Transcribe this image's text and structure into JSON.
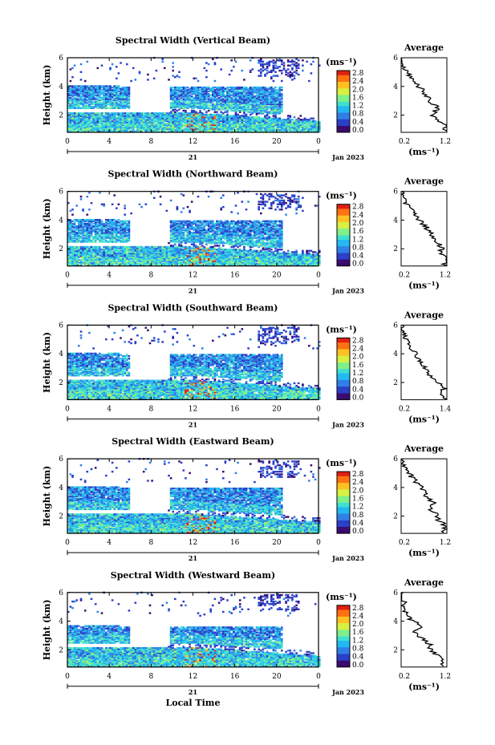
{
  "figure": {
    "x_axis_label": "Local Time",
    "date_label": "Jan 2023",
    "day_label": "21",
    "y_axis_label": "Height (km)",
    "unit_label": "(ms⁻¹)",
    "profile_title": "Average",
    "colorbar_ticks": [
      "0.0",
      "0.4",
      "0.8",
      "1.2",
      "1.6",
      "2.0",
      "2.4",
      "2.8"
    ],
    "colors": [
      "#3a0a6e",
      "#2a3fc8",
      "#2f7fe6",
      "#22b8f0",
      "#3fe0d0",
      "#7ff08a",
      "#d8f040",
      "#ffc020",
      "#ff7010",
      "#e02010"
    ]
  },
  "chart_data": [
    {
      "type": "heatmap",
      "title": "Spectral Width (Vertical Beam)",
      "xlabel": "",
      "ylabel": "Height (km)",
      "xlim": [
        0,
        24
      ],
      "ylim": [
        0.8,
        6
      ],
      "xticks": [
        "0",
        "4",
        "8",
        "12",
        "16",
        "20",
        "0"
      ],
      "yticks": [
        "2",
        "4",
        "6"
      ],
      "colorbar": {
        "label": "(ms⁻¹)",
        "range": [
          0,
          2.8
        ],
        "ticks": [
          "0.0",
          "0.4",
          "0.8",
          "1.2",
          "1.6",
          "2.0",
          "2.4",
          "2.8"
        ]
      },
      "profile": {
        "title": "Average",
        "xlabel": "(ms⁻¹)",
        "xticks": [
          "0.2",
          "1.2"
        ],
        "xlim": [
          0.2,
          1.2
        ],
        "yticks": [
          "2",
          "4",
          "6"
        ],
        "heights": [
          0.9,
          1.3,
          1.7,
          2.1,
          2.5,
          2.9,
          3.3,
          3.7,
          4.1,
          4.5,
          4.9,
          5.3,
          5.7,
          6.0
        ],
        "values": [
          1.15,
          1.18,
          0.95,
          0.9,
          1.0,
          0.85,
          0.75,
          0.7,
          0.55,
          0.45,
          0.35,
          0.25,
          0.2,
          0.2
        ]
      }
    },
    {
      "type": "heatmap",
      "title": "Spectral Width (Northward Beam)",
      "xlabel": "",
      "ylabel": "Height (km)",
      "xlim": [
        0,
        24
      ],
      "ylim": [
        0.8,
        6
      ],
      "xticks": [
        "0",
        "4",
        "8",
        "12",
        "16",
        "20",
        "0"
      ],
      "yticks": [
        "2",
        "4",
        "6"
      ],
      "colorbar": {
        "label": "(ms⁻¹)",
        "range": [
          0,
          2.8
        ],
        "ticks": [
          "0.0",
          "0.4",
          "0.8",
          "1.2",
          "1.6",
          "2.0",
          "2.4",
          "2.8"
        ]
      },
      "profile": {
        "title": "Average",
        "xlabel": "(ms⁻¹)",
        "xticks": [
          "0.2",
          "1.2"
        ],
        "xlim": [
          0.2,
          1.2
        ],
        "yticks": [
          "2",
          "4",
          "6"
        ],
        "heights": [
          0.9,
          1.3,
          1.7,
          2.1,
          2.5,
          2.9,
          3.3,
          3.7,
          4.1,
          4.5,
          4.9,
          5.3,
          5.7,
          6.0
        ],
        "values": [
          1.15,
          1.2,
          1.05,
          1.1,
          0.95,
          0.9,
          0.8,
          0.7,
          0.55,
          0.45,
          0.38,
          0.3,
          0.22,
          0.2
        ]
      }
    },
    {
      "type": "heatmap",
      "title": "Spectral Width (Southward Beam)",
      "xlabel": "",
      "ylabel": "Height (km)",
      "xlim": [
        0,
        24
      ],
      "ylim": [
        0.8,
        6
      ],
      "xticks": [
        "0",
        "4",
        "8",
        "12",
        "16",
        "20",
        "0"
      ],
      "yticks": [
        "2",
        "4",
        "6"
      ],
      "colorbar": {
        "label": "(ms⁻¹)",
        "range": [
          0,
          2.8
        ],
        "ticks": [
          "0.0",
          "0.4",
          "0.8",
          "1.2",
          "1.6",
          "2.0",
          "2.4",
          "2.8"
        ]
      },
      "profile": {
        "title": "Average",
        "xlabel": "(ms⁻¹)",
        "xticks": [
          "0.2",
          "1.4"
        ],
        "xlim": [
          0.2,
          1.4
        ],
        "yticks": [
          "2",
          "4",
          "6"
        ],
        "heights": [
          0.9,
          1.3,
          1.7,
          2.1,
          2.5,
          2.9,
          3.3,
          3.7,
          4.1,
          4.5,
          4.9,
          5.3,
          5.7,
          6.0
        ],
        "values": [
          1.35,
          1.25,
          1.35,
          1.1,
          0.95,
          0.85,
          0.75,
          0.65,
          0.55,
          0.45,
          0.35,
          0.28,
          0.22,
          0.2
        ]
      }
    },
    {
      "type": "heatmap",
      "title": "Spectral Width (Eastward Beam)",
      "xlabel": "",
      "ylabel": "Height (km)",
      "xlim": [
        0,
        24
      ],
      "ylim": [
        0.8,
        6
      ],
      "xticks": [
        "0",
        "4",
        "8",
        "12",
        "16",
        "20",
        "0"
      ],
      "yticks": [
        "2",
        "4",
        "6"
      ],
      "colorbar": {
        "label": "(ms⁻¹)",
        "range": [
          0,
          2.8
        ],
        "ticks": [
          "0.0",
          "0.4",
          "0.8",
          "1.2",
          "1.6",
          "2.0",
          "2.4",
          "2.8"
        ]
      },
      "profile": {
        "title": "Average",
        "xlabel": "(ms⁻¹)",
        "xticks": [
          "0.2",
          "1.2"
        ],
        "xlim": [
          0.2,
          1.2
        ],
        "yticks": [
          "2",
          "4",
          "6"
        ],
        "heights": [
          0.9,
          1.3,
          1.7,
          2.1,
          2.5,
          2.9,
          3.3,
          3.7,
          4.1,
          4.5,
          4.9,
          5.3,
          5.7,
          6.0
        ],
        "values": [
          1.1,
          1.2,
          1.0,
          0.95,
          0.85,
          0.9,
          0.75,
          0.7,
          0.6,
          0.5,
          0.38,
          0.3,
          0.22,
          0.2
        ]
      }
    },
    {
      "type": "heatmap",
      "title": "Spectral Width (Westward Beam)",
      "xlabel": "Local Time",
      "ylabel": "Height (km)",
      "xlim": [
        0,
        24
      ],
      "ylim": [
        0.8,
        6
      ],
      "xticks": [
        "0",
        "4",
        "8",
        "12",
        "16",
        "20",
        "0"
      ],
      "yticks": [
        "2",
        "4",
        "6"
      ],
      "colorbar": {
        "label": "(ms⁻¹)",
        "range": [
          0,
          2.8
        ],
        "ticks": [
          "0.0",
          "0.4",
          "0.8",
          "1.2",
          "1.6",
          "2.0",
          "2.4",
          "2.8"
        ]
      },
      "profile": {
        "title": "Average",
        "xlabel": "(ms⁻¹)",
        "xticks": [
          "0.2",
          "1.2"
        ],
        "xlim": [
          0.2,
          1.2
        ],
        "yticks": [
          "2",
          "4",
          "6"
        ],
        "heights": [
          0.9,
          1.3,
          1.7,
          2.1,
          2.5,
          2.9,
          3.3,
          3.7,
          4.1,
          4.5,
          4.9,
          5.3,
          5.7,
          6.0
        ],
        "values": [
          1.1,
          1.15,
          0.95,
          0.85,
          0.8,
          0.6,
          0.45,
          0.65,
          0.4,
          0.3,
          0.25,
          0.25,
          0.2,
          0.2
        ]
      }
    }
  ]
}
